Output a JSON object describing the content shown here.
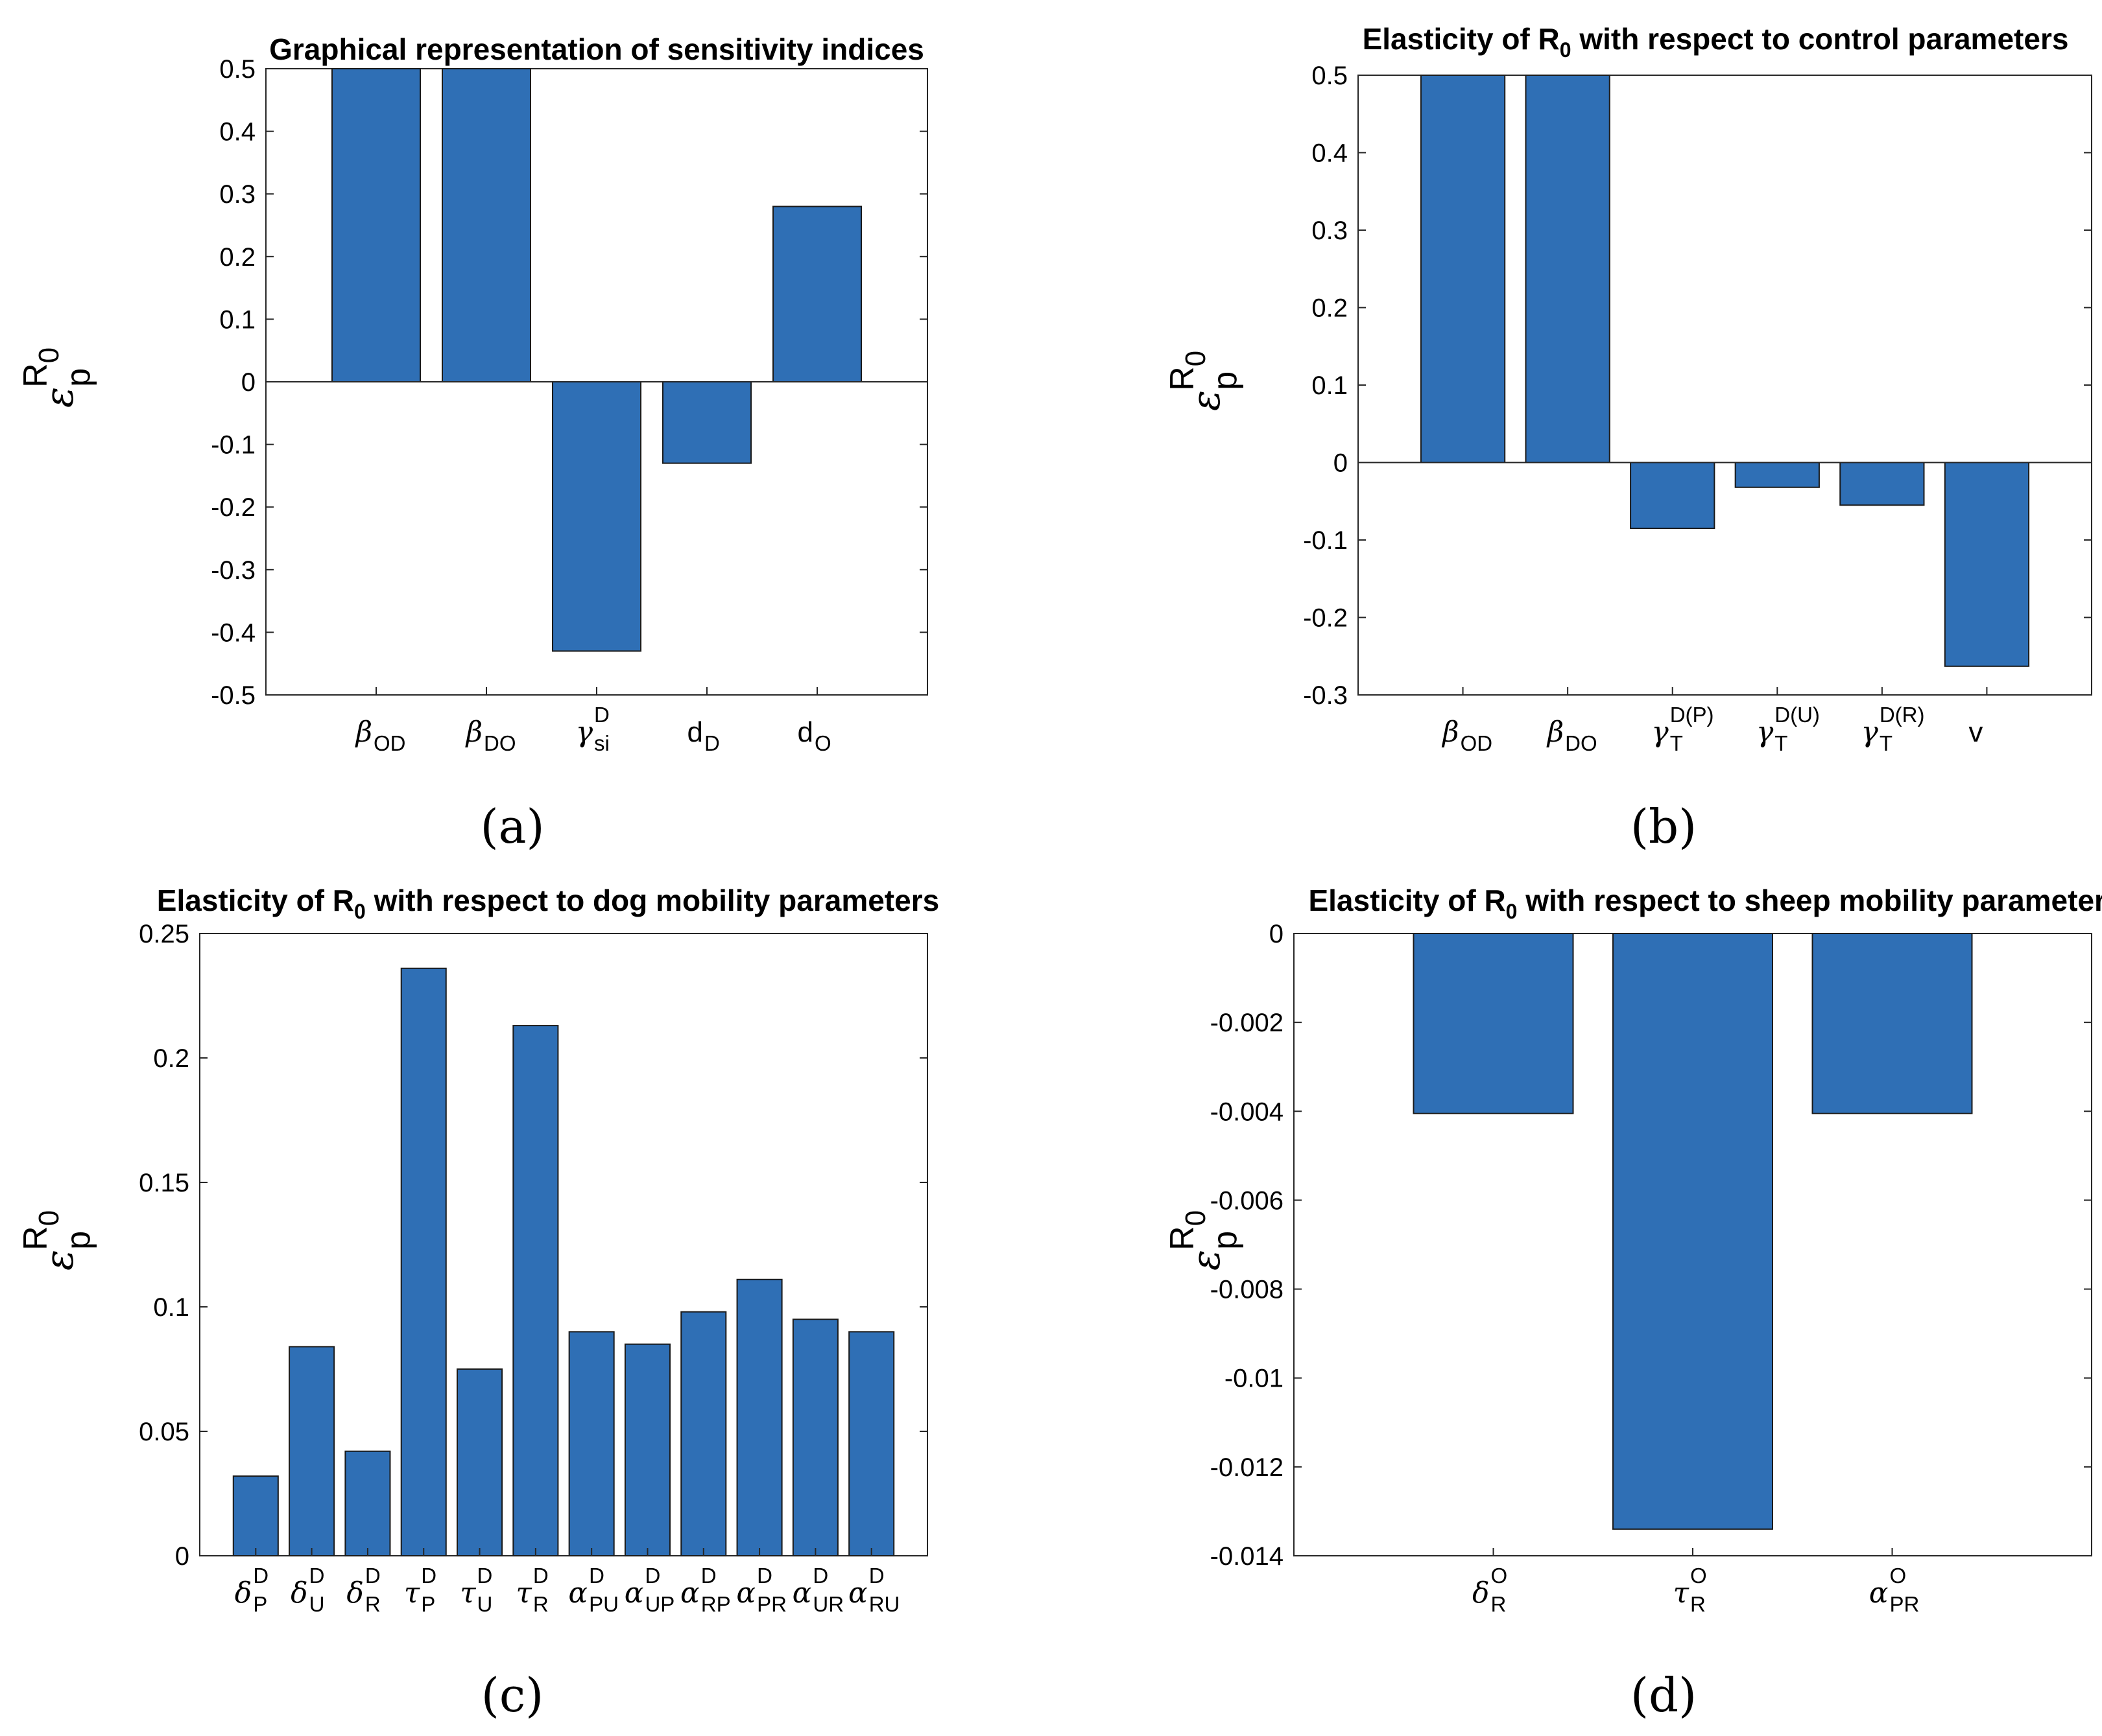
{
  "bar_color": "#2f6fb5",
  "chart_data": [
    {
      "type": "bar",
      "panel": "(a)",
      "title": "Graphical representation of sensitivity indices",
      "ylabel": {
        "base": "ε",
        "sup": "R",
        "sup_sub": "0",
        "sub": "p"
      },
      "ylim": [
        -0.5,
        0.5
      ],
      "yticks": [
        "0.5",
        "0.4",
        "0.3",
        "0.2",
        "0.1",
        "0",
        "-0.1",
        "-0.2",
        "-0.3",
        "-0.4",
        "-0.5"
      ],
      "xlim": [
        0,
        6
      ],
      "categories": [
        {
          "base": "β",
          "greek": true,
          "sub": "OD",
          "sup": ""
        },
        {
          "base": "β",
          "greek": true,
          "sub": "DO",
          "sup": ""
        },
        {
          "base": "γ",
          "greek": true,
          "sub": "si",
          "sup": "D"
        },
        {
          "base": "d",
          "greek": false,
          "sub": "D",
          "sup": ""
        },
        {
          "base": "d",
          "greek": false,
          "sub": "O",
          "sup": ""
        }
      ],
      "values": [
        0.5,
        0.5,
        -0.43,
        -0.13,
        0.28
      ]
    },
    {
      "type": "bar",
      "panel": "(b)",
      "title": {
        "pre": "Elasticity of R",
        "sub": "0",
        "post": " with respect to control parameters"
      },
      "ylabel": {
        "base": "ε",
        "sup": "R",
        "sup_sub": "0",
        "sub": "p"
      },
      "ylim": [
        -0.3,
        0.5
      ],
      "yticks": [
        "0.5",
        "0.4",
        "0.3",
        "0.2",
        "0.1",
        "0",
        "-0.1",
        "-0.2",
        "-0.3"
      ],
      "xlim": [
        0,
        7
      ],
      "categories": [
        {
          "base": "β",
          "greek": true,
          "sub": "OD",
          "sup": ""
        },
        {
          "base": "β",
          "greek": true,
          "sub": "DO",
          "sup": ""
        },
        {
          "base": "γ",
          "greek": true,
          "sub": "T",
          "sup": "D(P)"
        },
        {
          "base": "γ",
          "greek": true,
          "sub": "T",
          "sup": "D(U)"
        },
        {
          "base": "γ",
          "greek": true,
          "sub": "T",
          "sup": "D(R)"
        },
        {
          "base": "v",
          "greek": false,
          "sub": "",
          "sup": ""
        }
      ],
      "values": [
        0.5,
        0.5,
        -0.085,
        -0.032,
        -0.055,
        -0.263
      ]
    },
    {
      "type": "bar",
      "panel": "(c)",
      "title": {
        "pre": "Elasticity of R",
        "sub": "0",
        "post": " with respect to dog mobility parameters"
      },
      "ylabel": {
        "base": "ε",
        "sup": "R",
        "sup_sub": "0",
        "sub": "p"
      },
      "ylim": [
        0,
        0.25
      ],
      "yticks": [
        "0.25",
        "0.2",
        "0.15",
        "0.1",
        "0.05",
        "0"
      ],
      "xlim": [
        0,
        13
      ],
      "categories": [
        {
          "base": "δ",
          "greek": true,
          "sub": "P",
          "sup": "D"
        },
        {
          "base": "δ",
          "greek": true,
          "sub": "U",
          "sup": "D"
        },
        {
          "base": "δ",
          "greek": true,
          "sub": "R",
          "sup": "D"
        },
        {
          "base": "τ",
          "greek": true,
          "sub": "P",
          "sup": "D"
        },
        {
          "base": "τ",
          "greek": true,
          "sub": "U",
          "sup": "D"
        },
        {
          "base": "τ",
          "greek": true,
          "sub": "R",
          "sup": "D"
        },
        {
          "base": "α",
          "greek": true,
          "sub": "PU",
          "sup": "D"
        },
        {
          "base": "α",
          "greek": true,
          "sub": "UP",
          "sup": "D"
        },
        {
          "base": "α",
          "greek": true,
          "sub": "RP",
          "sup": "D"
        },
        {
          "base": "α",
          "greek": true,
          "sub": "PR",
          "sup": "D"
        },
        {
          "base": "α",
          "greek": true,
          "sub": "UR",
          "sup": "D"
        },
        {
          "base": "α",
          "greek": true,
          "sub": "RU",
          "sup": "D"
        }
      ],
      "values": [
        0.032,
        0.084,
        0.042,
        0.236,
        0.075,
        0.213,
        0.09,
        0.085,
        0.098,
        0.111,
        0.095,
        0.09
      ]
    },
    {
      "type": "bar",
      "panel": "(d)",
      "title": {
        "pre": "Elasticity of R",
        "sub": "0",
        "post": " with respect to sheep mobility parameters"
      },
      "ylabel": {
        "base": "ε",
        "sup": "R",
        "sup_sub": "0",
        "sub": "p"
      },
      "ylim": [
        -0.014,
        0
      ],
      "yticks": [
        "0",
        "-0.002",
        "-0.004",
        "-0.006",
        "-0.008",
        "-0.01",
        "-0.012",
        "-0.014"
      ],
      "xlim": [
        0,
        4
      ],
      "categories": [
        {
          "base": "δ",
          "greek": true,
          "sub": "R",
          "sup": "O"
        },
        {
          "base": "τ",
          "greek": true,
          "sub": "R",
          "sup": "O"
        },
        {
          "base": "α",
          "greek": true,
          "sub": "PR",
          "sup": "O"
        }
      ],
      "values": [
        -0.00405,
        -0.0134,
        -0.00405
      ]
    }
  ]
}
